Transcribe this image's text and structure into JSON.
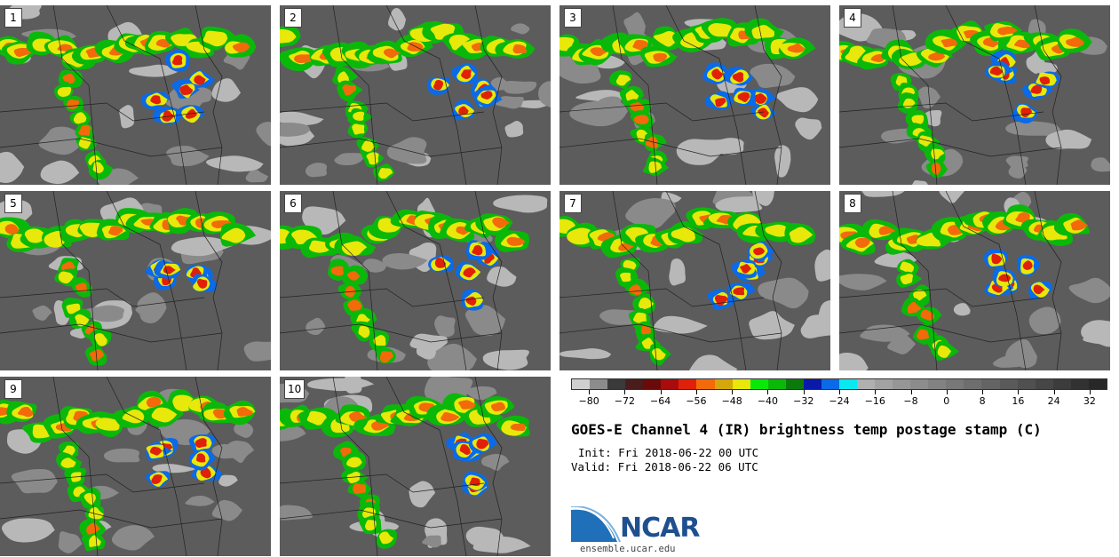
{
  "panels": [
    {
      "label": "1"
    },
    {
      "label": "2"
    },
    {
      "label": "3"
    },
    {
      "label": "4"
    },
    {
      "label": "5"
    },
    {
      "label": "6"
    },
    {
      "label": "7"
    },
    {
      "label": "8"
    },
    {
      "label": "9"
    },
    {
      "label": "10"
    }
  ],
  "colorbar": {
    "colors": [
      "#cfcfcf",
      "#8c8c8c",
      "#3a3a3a",
      "#4a1c1c",
      "#6b0a0a",
      "#a80c0c",
      "#e0200a",
      "#f26a0a",
      "#d4a80a",
      "#e8e80a",
      "#0ae80a",
      "#0ab80a",
      "#0a7a0a",
      "#0a1aa8",
      "#0a6ae8",
      "#0ae8f0",
      "#b0b0b0",
      "#a2a2a2",
      "#969696",
      "#8c8c8c",
      "#828282",
      "#787878",
      "#6e6e6e",
      "#646464",
      "#5a5a5a",
      "#505050",
      "#464646",
      "#3c3c3c",
      "#323232",
      "#282828"
    ],
    "tick_labels": [
      "-80",
      "-72",
      "-64",
      "-56",
      "-48",
      "-40",
      "-32",
      "-24",
      "-16",
      "-8",
      "0",
      "8",
      "16",
      "24",
      "32"
    ]
  },
  "title": "GOES-E Channel 4 (IR) brightness temp postage stamp (C)",
  "init": "Init: Fri 2018-06-22 00 UTC",
  "valid": "Valid: Fri 2018-06-22 06 UTC",
  "logo": {
    "text": "NCAR",
    "color": "#1f4f8f"
  },
  "url": "ensemble.ucar.edu"
}
